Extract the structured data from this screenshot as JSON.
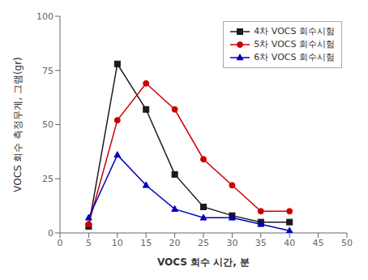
{
  "chart_data": {
    "type": "line",
    "x": [
      5,
      10,
      15,
      20,
      25,
      30,
      35,
      40
    ],
    "series": [
      {
        "name": "4차 VOCS 회수시험",
        "color": "#1a1a1a",
        "marker": "square",
        "values": [
          3,
          78,
          57,
          27,
          12,
          8,
          5,
          5
        ]
      },
      {
        "name": "5차 VOCS 회수시험",
        "color": "#cc0000",
        "marker": "circle",
        "values": [
          4,
          52,
          69,
          57,
          34,
          22,
          10,
          10
        ]
      },
      {
        "name": "6차 VOCS 회수시험",
        "color": "#0000bb",
        "marker": "triangle",
        "values": [
          7,
          36,
          22,
          11,
          7,
          7,
          4,
          1
        ]
      }
    ],
    "xlabel": "VOCS 회수 시간, 분",
    "ylabel": "VOCS 회수 측정무게, 그램(gr)",
    "xlim": [
      0,
      50
    ],
    "ylim": [
      0,
      100
    ],
    "xticks": [
      0,
      5,
      10,
      15,
      20,
      25,
      30,
      35,
      40,
      45,
      50
    ],
    "yticks": [
      0,
      25,
      50,
      75,
      100
    ],
    "grid": false,
    "legend": "upper right"
  }
}
